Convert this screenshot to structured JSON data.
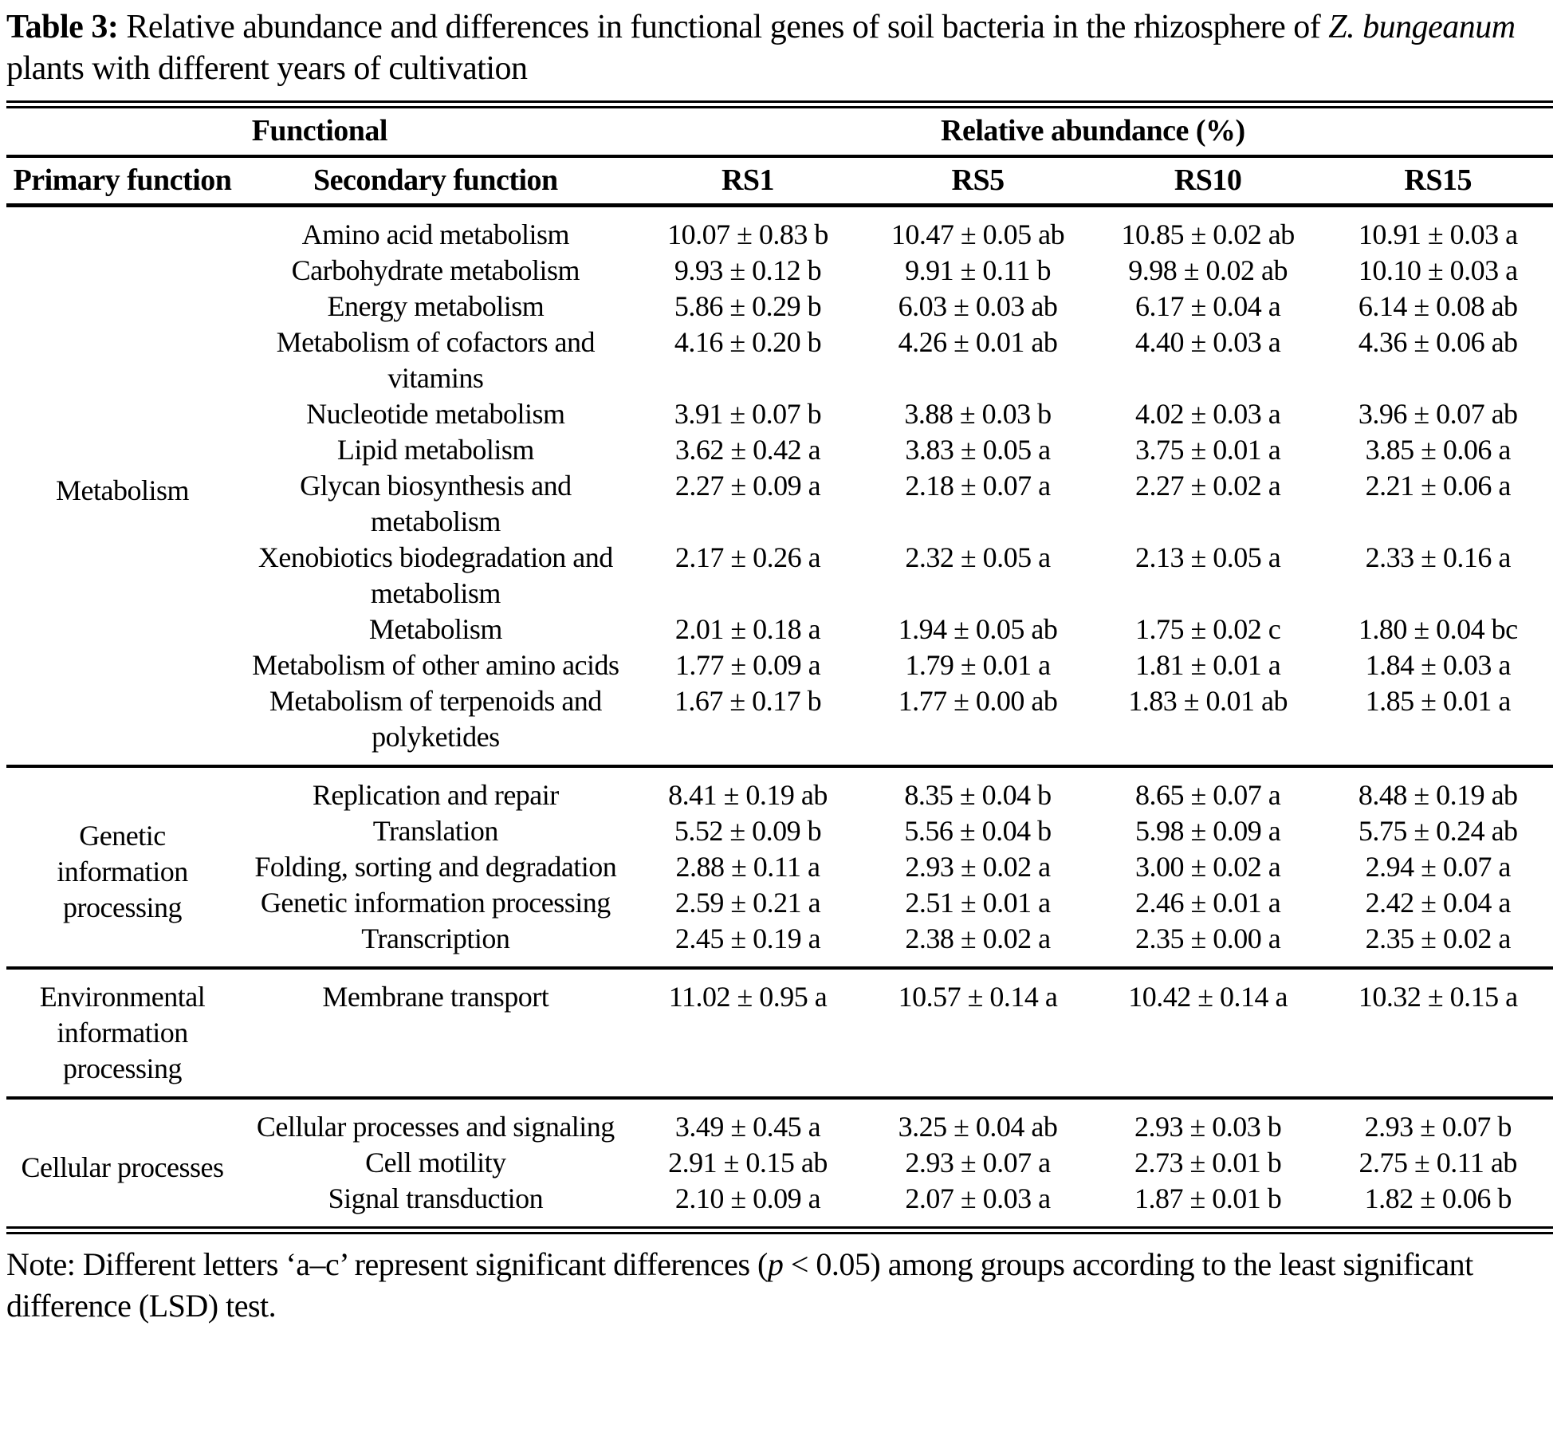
{
  "title": {
    "label": "Table 3:",
    "text_before_italic": " Relative abundance and differences in functional genes of soil bacteria in the rhizosphere of ",
    "species_italic": "Z. bungeanum",
    "text_after_italic": " plants with different years of cultivation"
  },
  "header": {
    "group_left": "Functional",
    "group_right": "Relative abundance (%)",
    "col_primary": "Primary function",
    "col_secondary": "Secondary function",
    "col_samples": [
      "RS1",
      "RS5",
      "RS10",
      "RS15"
    ]
  },
  "chart_data": {
    "type": "table",
    "title": "Relative abundance and differences in functional genes of soil bacteria in the rhizosphere of Z. bungeanum plants with different years of cultivation",
    "columns": [
      "Primary function",
      "Secondary function",
      "RS1",
      "RS5",
      "RS10",
      "RS15"
    ]
  },
  "sections": [
    {
      "primary": "Metabolism",
      "rows": [
        {
          "secondary": "Amino acid metabolism",
          "values": [
            "10.07 ± 0.83 b",
            "10.47 ± 0.05 ab",
            "10.85 ± 0.02 ab",
            "10.91 ± 0.03 a"
          ]
        },
        {
          "secondary": "Carbohydrate metabolism",
          "values": [
            "9.93 ± 0.12 b",
            "9.91 ± 0.11 b",
            "9.98 ± 0.02 ab",
            "10.10 ± 0.03 a"
          ]
        },
        {
          "secondary": "Energy metabolism",
          "values": [
            "5.86 ± 0.29 b",
            "6.03 ± 0.03 ab",
            "6.17 ± 0.04 a",
            "6.14 ± 0.08 ab"
          ]
        },
        {
          "secondary": "Metabolism of cofactors and vitamins",
          "values": [
            "4.16 ± 0.20 b",
            "4.26 ± 0.01 ab",
            "4.40 ± 0.03 a",
            "4.36 ± 0.06 ab"
          ]
        },
        {
          "secondary": "Nucleotide metabolism",
          "values": [
            "3.91 ± 0.07 b",
            "3.88 ± 0.03 b",
            "4.02 ± 0.03 a",
            "3.96 ± 0.07 ab"
          ]
        },
        {
          "secondary": "Lipid metabolism",
          "values": [
            "3.62 ± 0.42 a",
            "3.83 ± 0.05 a",
            "3.75 ± 0.01 a",
            "3.85 ± 0.06 a"
          ]
        },
        {
          "secondary": "Glycan biosynthesis and metabolism",
          "values": [
            "2.27 ± 0.09 a",
            "2.18 ± 0.07 a",
            "2.27 ± 0.02 a",
            "2.21 ± 0.06 a"
          ]
        },
        {
          "secondary": "Xenobiotics biodegradation and metabolism",
          "values": [
            "2.17 ± 0.26 a",
            "2.32 ± 0.05 a",
            "2.13 ± 0.05 a",
            "2.33 ± 0.16 a"
          ]
        },
        {
          "secondary": "Metabolism",
          "values": [
            "2.01 ± 0.18 a",
            "1.94 ± 0.05 ab",
            "1.75 ± 0.02 c",
            "1.80 ± 0.04 bc"
          ]
        },
        {
          "secondary": "Metabolism of other amino acids",
          "values": [
            "1.77 ± 0.09 a",
            "1.79 ± 0.01 a",
            "1.81 ± 0.01 a",
            "1.84 ± 0.03 a"
          ]
        },
        {
          "secondary": "Metabolism of terpenoids and polyketides",
          "values": [
            "1.67 ± 0.17 b",
            "1.77 ± 0.00 ab",
            "1.83 ± 0.01 ab",
            "1.85 ± 0.01 a"
          ]
        }
      ]
    },
    {
      "primary": "Genetic information processing",
      "rows": [
        {
          "secondary": "Replication and repair",
          "values": [
            "8.41 ± 0.19 ab",
            "8.35 ± 0.04 b",
            "8.65 ± 0.07 a",
            "8.48 ± 0.19 ab"
          ]
        },
        {
          "secondary": "Translation",
          "values": [
            "5.52 ± 0.09 b",
            "5.56 ± 0.04 b",
            "5.98 ± 0.09 a",
            "5.75 ± 0.24 ab"
          ]
        },
        {
          "secondary": "Folding, sorting and degradation",
          "values": [
            "2.88 ± 0.11 a",
            "2.93 ± 0.02 a",
            "3.00 ± 0.02 a",
            "2.94 ± 0.07 a"
          ]
        },
        {
          "secondary": "Genetic information processing",
          "values": [
            "2.59 ± 0.21 a",
            "2.51 ± 0.01 a",
            "2.46 ± 0.01 a",
            "2.42 ± 0.04 a"
          ]
        },
        {
          "secondary": "Transcription",
          "values": [
            "2.45 ± 0.19 a",
            "2.38 ± 0.02 a",
            "2.35 ± 0.00 a",
            "2.35 ± 0.02 a"
          ]
        }
      ]
    },
    {
      "primary": "Environmental information processing",
      "rows": [
        {
          "secondary": "Membrane transport",
          "values": [
            "11.02 ± 0.95 a",
            "10.57 ± 0.14 a",
            "10.42 ± 0.14 a",
            "10.32 ± 0.15 a"
          ]
        }
      ]
    },
    {
      "primary": "Cellular processes",
      "rows": [
        {
          "secondary": "Cellular processes and signaling",
          "values": [
            "3.49 ± 0.45 a",
            "3.25 ± 0.04 ab",
            "2.93 ± 0.03 b",
            "2.93 ± 0.07 b"
          ]
        },
        {
          "secondary": "Cell motility",
          "values": [
            "2.91 ± 0.15 ab",
            "2.93 ± 0.07 a",
            "2.73 ± 0.01 b",
            "2.75 ± 0.11 ab"
          ]
        },
        {
          "secondary": "Signal transduction",
          "values": [
            "2.10 ± 0.09 a",
            "2.07 ± 0.03 a",
            "1.87 ± 0.01 b",
            "1.82 ± 0.06 b"
          ]
        }
      ]
    }
  ],
  "note": {
    "before_p": "Note: Different letters ‘a–c’ represent significant differences (",
    "p_italic": "p",
    "after_p": " < 0.05) among groups according to the least significant difference (LSD) test."
  }
}
